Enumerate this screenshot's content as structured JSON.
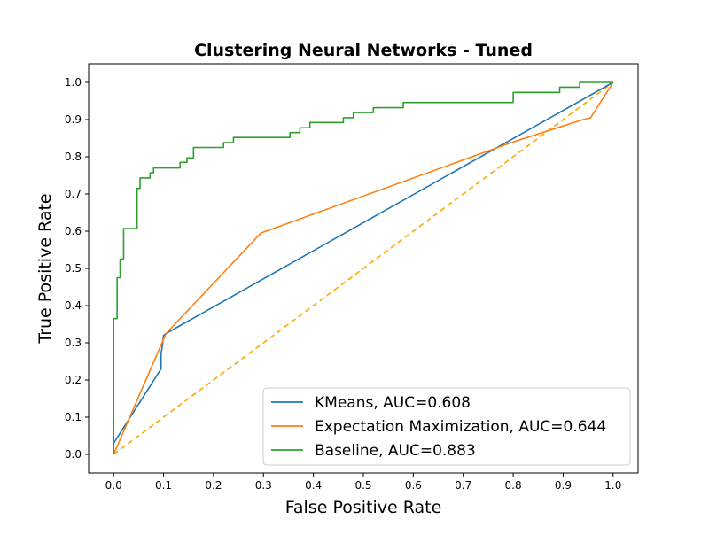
{
  "chart_data": {
    "type": "line",
    "title": "Clustering Neural Networks - Tuned",
    "xlabel": "False Positive Rate",
    "ylabel": "True Positive Rate",
    "xlim": [
      -0.05,
      1.05
    ],
    "ylim": [
      -0.05,
      1.05
    ],
    "xticks": [
      "0.0",
      "0.1",
      "0.2",
      "0.3",
      "0.4",
      "0.5",
      "0.6",
      "0.7",
      "0.8",
      "0.9",
      "1.0"
    ],
    "yticks": [
      "0.0",
      "0.1",
      "0.2",
      "0.3",
      "0.4",
      "0.5",
      "0.6",
      "0.7",
      "0.8",
      "0.9",
      "1.0"
    ],
    "grid": false,
    "legend_position": "lower right",
    "series": [
      {
        "name": "KMeans, AUC=0.608",
        "color": "#1f77b4",
        "dashed": false,
        "x": [
          0.0,
          0.0,
          0.095,
          0.095,
          0.098,
          0.1,
          0.105,
          1.0
        ],
        "y": [
          0.0,
          0.03,
          0.23,
          0.27,
          0.295,
          0.32,
          0.325,
          1.0
        ]
      },
      {
        "name": "Expectation Maximization, AUC=0.644",
        "color": "#ff7f0e",
        "dashed": false,
        "x": [
          0.0,
          0.105,
          0.295,
          0.8,
          0.94,
          0.955,
          1.0
        ],
        "y": [
          0.0,
          0.325,
          0.595,
          0.84,
          0.9,
          0.905,
          1.0
        ]
      },
      {
        "name": "Baseline, AUC=0.883",
        "color": "#2ca02c",
        "dashed": false,
        "x": [
          0.0,
          0.0,
          0.007,
          0.007,
          0.013,
          0.013,
          0.02,
          0.02,
          0.027,
          0.027,
          0.047,
          0.047,
          0.053,
          0.053,
          0.073,
          0.073,
          0.08,
          0.08,
          0.1,
          0.1,
          0.133,
          0.133,
          0.147,
          0.147,
          0.16,
          0.16,
          0.22,
          0.22,
          0.24,
          0.24,
          0.353,
          0.353,
          0.373,
          0.373,
          0.393,
          0.393,
          0.46,
          0.46,
          0.48,
          0.48,
          0.52,
          0.52,
          0.58,
          0.58,
          0.8,
          0.8,
          0.893,
          0.893,
          0.933,
          0.933,
          1.0
        ],
        "y": [
          0.0,
          0.365,
          0.365,
          0.475,
          0.475,
          0.525,
          0.525,
          0.607,
          0.607,
          0.607,
          0.607,
          0.715,
          0.715,
          0.743,
          0.743,
          0.757,
          0.757,
          0.77,
          0.77,
          0.77,
          0.77,
          0.785,
          0.785,
          0.797,
          0.797,
          0.825,
          0.825,
          0.838,
          0.838,
          0.852,
          0.852,
          0.865,
          0.865,
          0.878,
          0.878,
          0.892,
          0.892,
          0.905,
          0.905,
          0.919,
          0.919,
          0.932,
          0.932,
          0.946,
          0.946,
          0.973,
          0.973,
          0.987,
          0.987,
          1.0,
          1.0
        ]
      }
    ],
    "reference_line": {
      "color": "#ffa500",
      "dashed": true,
      "x": [
        0.0,
        1.0
      ],
      "y": [
        0.0,
        1.0
      ]
    }
  }
}
